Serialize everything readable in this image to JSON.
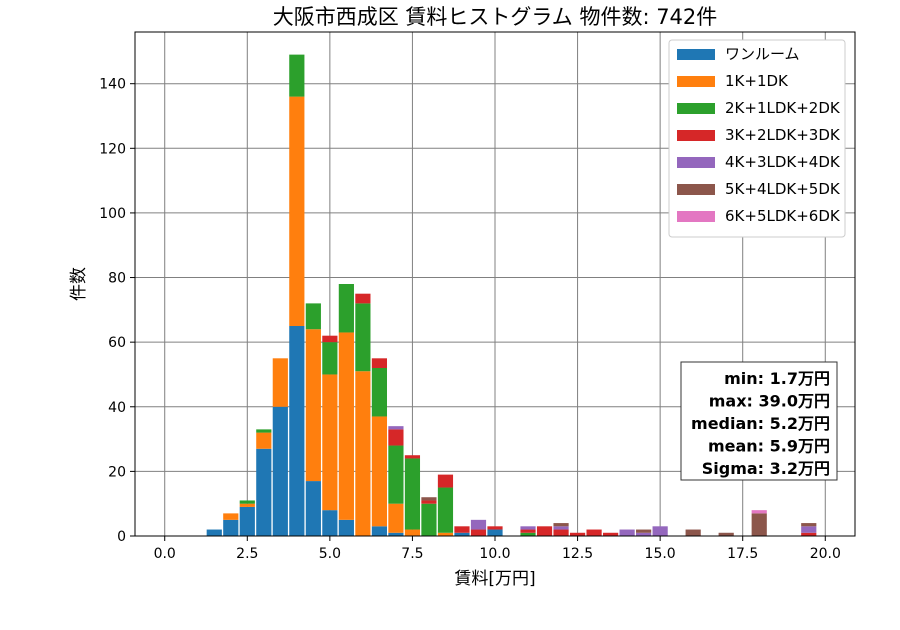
{
  "chart_data": {
    "type": "bar",
    "stacked": true,
    "title": "大阪市西成区 賃料ヒストグラム 物件数: 742件",
    "xlabel": "賃料[万円]",
    "ylabel": "件数",
    "xlim": [
      -0.9,
      20.9
    ],
    "ylim": [
      0,
      156
    ],
    "xticks": [
      "0.0",
      "2.5",
      "5.0",
      "7.5",
      "10.0",
      "12.5",
      "15.0",
      "17.5",
      "20.0"
    ],
    "yticks": [
      "0",
      "20",
      "40",
      "60",
      "80",
      "100",
      "120",
      "140"
    ],
    "grid": true,
    "legend_position": "top-right",
    "bin_width": 0.5,
    "x": [
      1.5,
      2.0,
      2.5,
      3.0,
      3.5,
      4.0,
      4.5,
      5.0,
      5.5,
      6.0,
      6.5,
      7.0,
      7.5,
      8.0,
      8.5,
      9.0,
      9.5,
      10.0,
      11.0,
      11.5,
      12.0,
      12.5,
      13.0,
      13.5,
      14.0,
      14.5,
      15.0,
      16.0,
      17.0,
      18.0,
      19.5
    ],
    "series": [
      {
        "name": "ワンルーム",
        "color": "#1f77b4",
        "values": [
          2,
          5,
          9,
          27,
          40,
          65,
          17,
          8,
          5,
          0,
          3,
          1,
          0,
          0,
          0,
          1,
          0,
          2,
          0,
          0,
          0,
          0,
          0,
          0,
          0,
          0,
          0,
          0,
          0,
          0,
          0
        ]
      },
      {
        "name": "1K+1DK",
        "color": "#ff7f0e",
        "values": [
          0,
          2,
          1,
          5,
          15,
          71,
          47,
          42,
          58,
          51,
          34,
          9,
          2,
          0,
          1,
          0,
          0,
          0,
          0,
          0,
          0,
          0,
          0,
          0,
          0,
          0,
          0,
          0,
          0,
          0,
          0
        ]
      },
      {
        "name": "2K+1LDK+2DK",
        "color": "#2ca02c",
        "values": [
          0,
          0,
          1,
          1,
          0,
          13,
          8,
          10,
          15,
          21,
          15,
          18,
          22,
          10,
          14,
          0,
          0,
          0,
          1,
          0,
          0,
          0,
          0,
          0,
          0,
          0,
          0,
          0,
          0,
          0,
          0
        ]
      },
      {
        "name": "3K+2LDK+3DK",
        "color": "#d62728",
        "values": [
          0,
          0,
          0,
          0,
          0,
          0,
          0,
          2,
          0,
          3,
          3,
          5,
          1,
          1,
          4,
          2,
          2,
          1,
          1,
          3,
          2,
          1,
          2,
          1,
          0,
          0,
          0,
          0,
          0,
          0,
          1
        ]
      },
      {
        "name": "4K+3LDK+4DK",
        "color": "#9467bd",
        "values": [
          0,
          0,
          0,
          0,
          0,
          0,
          0,
          0,
          0,
          0,
          0,
          1,
          0,
          0,
          0,
          0,
          3,
          0,
          1,
          0,
          1,
          0,
          0,
          0,
          2,
          1,
          3,
          0,
          0,
          0,
          2
        ]
      },
      {
        "name": "5K+4LDK+5DK",
        "color": "#8c564b",
        "values": [
          0,
          0,
          0,
          0,
          0,
          0,
          0,
          0,
          0,
          0,
          0,
          0,
          0,
          1,
          0,
          0,
          0,
          0,
          0,
          0,
          1,
          0,
          0,
          0,
          0,
          1,
          0,
          2,
          1,
          7,
          1
        ]
      },
      {
        "name": "6K+5LDK+6DK",
        "color": "#e377c2",
        "values": [
          0,
          0,
          0,
          0,
          0,
          0,
          0,
          0,
          0,
          0,
          0,
          0,
          0,
          0,
          0,
          0,
          0,
          0,
          0,
          0,
          0,
          0,
          0,
          0,
          0,
          0,
          0,
          0,
          0,
          1,
          0
        ]
      }
    ],
    "annotations": [
      "min: 1.7万円",
      "max: 39.0万円",
      "median: 5.2万円",
      "mean: 5.9万円",
      "Sigma: 3.2万円"
    ]
  }
}
